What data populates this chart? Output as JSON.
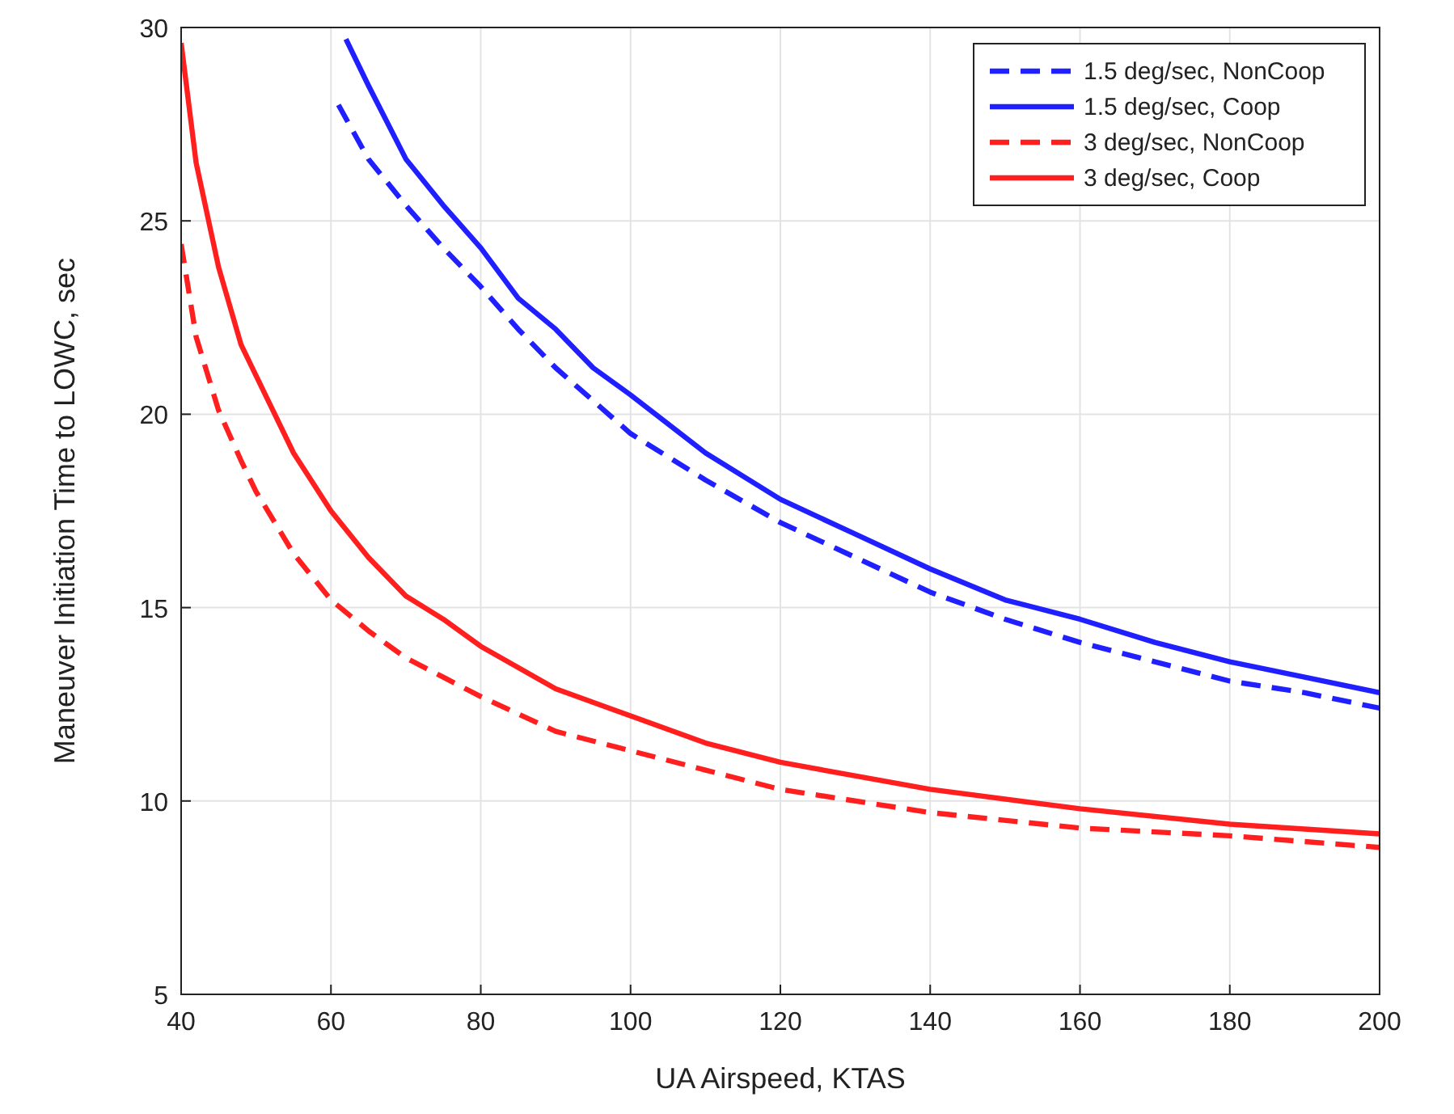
{
  "chart_data": {
    "type": "line",
    "xlabel": "UA Airspeed, KTAS",
    "ylabel": "Maneuver Initiation Time to LOWC, sec",
    "xlim": [
      40,
      200
    ],
    "xticks": [
      40,
      60,
      80,
      100,
      120,
      140,
      160,
      180,
      200
    ],
    "ylim": [
      5,
      30
    ],
    "yticks": [
      5,
      10,
      15,
      20,
      25,
      30
    ],
    "grid": true,
    "legend": "top right",
    "series": [
      {
        "name": "1.5 deg/sec, NonCoop",
        "color": "#1f1fff",
        "line_style": "dashed",
        "x": [
          61,
          65,
          70,
          75,
          80,
          85,
          90,
          100,
          110,
          120,
          130,
          140,
          150,
          160,
          170,
          180,
          190,
          200
        ],
        "values": [
          28,
          26.6,
          25.4,
          24.3,
          23.3,
          22.2,
          21.2,
          19.5,
          18.3,
          17.2,
          16.3,
          15.4,
          14.7,
          14.1,
          13.6,
          13.1,
          12.8,
          12.4
        ]
      },
      {
        "name": "1.5 deg/sec, Coop",
        "color": "#1f1fff",
        "line_style": "solid",
        "x": [
          62,
          65,
          70,
          75,
          80,
          85,
          90,
          95,
          100,
          110,
          120,
          130,
          140,
          150,
          160,
          170,
          180,
          190,
          200
        ],
        "values": [
          29.7,
          28.5,
          26.6,
          25.4,
          24.3,
          23.0,
          22.2,
          21.2,
          20.5,
          19.0,
          17.8,
          16.9,
          16.0,
          15.2,
          14.7,
          14.1,
          13.6,
          13.2,
          12.8
        ]
      },
      {
        "name": "3 deg/sec, NonCoop",
        "color": "#ff1f1f",
        "line_style": "dashed",
        "x": [
          40,
          42,
          45,
          48,
          50,
          55,
          60,
          65,
          70,
          75,
          80,
          90,
          100,
          110,
          120,
          140,
          160,
          180,
          200
        ],
        "values": [
          24.4,
          22.0,
          20.1,
          18.8,
          18.0,
          16.4,
          15.2,
          14.4,
          13.7,
          13.2,
          12.7,
          11.8,
          11.3,
          10.8,
          10.3,
          9.7,
          9.3,
          9.1,
          8.8
        ]
      },
      {
        "name": "3 deg/sec, Coop",
        "color": "#ff1f1f",
        "line_style": "solid",
        "x": [
          40,
          42,
          45,
          48,
          50,
          55,
          60,
          65,
          70,
          75,
          80,
          90,
          100,
          110,
          120,
          140,
          160,
          180,
          200
        ],
        "values": [
          29.6,
          26.5,
          23.8,
          21.8,
          21.0,
          19.0,
          17.5,
          16.3,
          15.3,
          14.7,
          14.0,
          12.9,
          12.2,
          11.5,
          11.0,
          10.3,
          9.8,
          9.4,
          9.15
        ]
      }
    ]
  }
}
